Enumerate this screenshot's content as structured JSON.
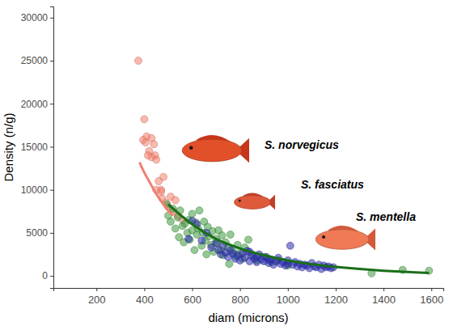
{
  "chart_data": {
    "type": "scatter",
    "x_label": "diam (microns)",
    "y_label": "Density (n/g)",
    "xlim": [
      20,
      1650
    ],
    "ylim": [
      -1400,
      31300
    ],
    "xticks": [
      200,
      400,
      600,
      800,
      1000,
      1200,
      1400,
      1600
    ],
    "yticks": [
      0,
      5000,
      10000,
      15000,
      20000,
      25000,
      30000
    ],
    "grid": false,
    "series": [
      {
        "name": "S. norvegicus",
        "type": "scatter",
        "color": "#f4806e",
        "x": [
          375,
          400,
          395,
          410,
          405,
          420,
          430,
          440,
          445,
          430,
          450,
          415,
          460,
          470,
          480,
          475,
          490,
          500,
          510,
          520,
          530,
          540,
          560,
          470,
          450
        ],
        "values": [
          25000,
          18200,
          15800,
          16200,
          15500,
          14500,
          16000,
          15300,
          14000,
          13800,
          13500,
          14000,
          11000,
          10000,
          11500,
          9000,
          8500,
          8000,
          9200,
          7500,
          8800,
          7000,
          6500,
          9800,
          10000
        ]
      },
      {
        "name": "S. fasciatus",
        "type": "scatter",
        "color": "#3f9a3f",
        "x": [
          495,
          500,
          510,
          520,
          530,
          540,
          545,
          550,
          560,
          565,
          570,
          580,
          585,
          590,
          600,
          600,
          610,
          615,
          620,
          625,
          630,
          640,
          645,
          650,
          655,
          660,
          665,
          670,
          680,
          685,
          690,
          700,
          705,
          710,
          720,
          725,
          730,
          740,
          750,
          755,
          760,
          770,
          780,
          790,
          800,
          810,
          820,
          835,
          850,
          870,
          900,
          930,
          960,
          1000,
          1350,
          1480,
          1590
        ],
        "values": [
          8300,
          7000,
          6300,
          7800,
          5500,
          6800,
          4500,
          7600,
          5800,
          3900,
          6100,
          5000,
          6500,
          4200,
          7200,
          5300,
          3000,
          6200,
          4800,
          5500,
          7600,
          3500,
          5000,
          6300,
          4100,
          2500,
          5700,
          4600,
          3600,
          5200,
          2800,
          4300,
          3800,
          5300,
          3000,
          4700,
          2400,
          3900,
          3300,
          1400,
          4800,
          2900,
          2300,
          3600,
          2700,
          2000,
          3300,
          4200,
          2500,
          1800,
          2200,
          1600,
          1800,
          1200,
          300,
          700,
          600
        ]
      },
      {
        "name": "S. mentella",
        "type": "scatter",
        "color": "#2b2bb0",
        "x": [
          585,
          600,
          620,
          640,
          660,
          680,
          700,
          710,
          720,
          730,
          740,
          750,
          760,
          770,
          780,
          790,
          800,
          810,
          820,
          830,
          840,
          850,
          860,
          870,
          880,
          890,
          900,
          910,
          920,
          930,
          940,
          950,
          960,
          970,
          980,
          990,
          1000,
          1010,
          1020,
          1030,
          1040,
          1050,
          1060,
          1070,
          1080,
          1090,
          1100,
          1110,
          1120,
          1130,
          1140,
          1150,
          1160,
          1170,
          1180,
          1190,
          840,
          870,
          920,
          1000
        ],
        "values": [
          4300,
          6400,
          6000,
          4100,
          5000,
          3300,
          3800,
          3000,
          2500,
          3500,
          2700,
          2200,
          3000,
          2600,
          2000,
          2400,
          1800,
          2600,
          2100,
          2900,
          1700,
          2300,
          2000,
          1600,
          2500,
          1900,
          1700,
          2200,
          1500,
          1900,
          1300,
          1700,
          2100,
          1400,
          1600,
          1200,
          1800,
          3500,
          1300,
          1600,
          1100,
          1400,
          1000,
          1300,
          1200,
          900,
          1500,
          1100,
          1000,
          1300,
          800,
          1200,
          1000,
          1100,
          900,
          1000,
          2800,
          2200,
          1900,
          1400
        ]
      },
      {
        "type": "line",
        "color": "#f08070",
        "x": [
          380,
          400,
          420,
          440,
          460,
          480,
          500,
          520
        ],
        "values": [
          13200,
          12000,
          11000,
          10000,
          9100,
          8300,
          7600,
          7000
        ]
      },
      {
        "type": "line",
        "color": "#1a6e1a",
        "x": [
          500,
          600,
          700,
          800,
          900,
          1000,
          1100,
          1200,
          1300,
          1400,
          1500,
          1590
        ],
        "values": [
          8300,
          6000,
          4300,
          3200,
          2400,
          1800,
          1350,
          1050,
          800,
          600,
          450,
          330
        ]
      }
    ]
  }
}
